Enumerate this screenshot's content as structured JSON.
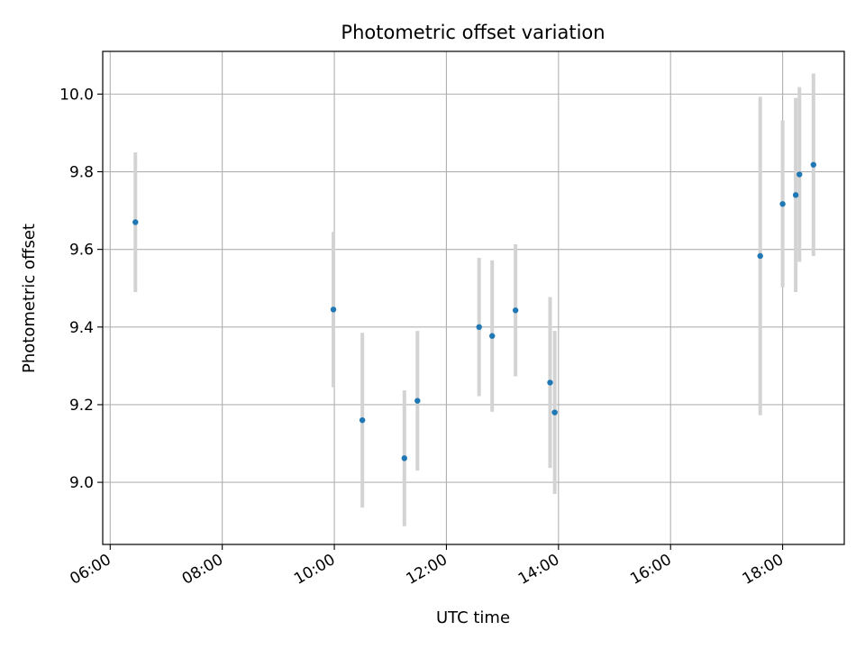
{
  "chart_data": {
    "type": "scatter",
    "title": "Photometric offset variation",
    "xlabel": "UTC time",
    "ylabel": "Photometric offset",
    "x_ticks": [
      "06:00",
      "08:00",
      "10:00",
      "12:00",
      "14:00",
      "16:00",
      "18:00"
    ],
    "y_ticks": [
      "9.0",
      "9.2",
      "9.4",
      "9.6",
      "9.8",
      "10.0"
    ],
    "xlim": [
      "05:52",
      "19:06"
    ],
    "ylim": [
      8.84,
      10.11
    ],
    "grid": true,
    "colors": {
      "point": "#1f77b4",
      "errorbar": "#d3d3d3",
      "grid": "#b0b0b0"
    },
    "points": [
      {
        "x": "06:27",
        "y": 9.67,
        "yerr": 0.18
      },
      {
        "x": "09:59",
        "y": 9.445,
        "yerr": 0.2
      },
      {
        "x": "10:30",
        "y": 9.16,
        "yerr": 0.225
      },
      {
        "x": "11:15",
        "y": 9.062,
        "yerr": 0.175
      },
      {
        "x": "11:29",
        "y": 9.21,
        "yerr": 0.18
      },
      {
        "x": "12:35",
        "y": 9.4,
        "yerr": 0.178
      },
      {
        "x": "12:49",
        "y": 9.377,
        "yerr": 0.195
      },
      {
        "x": "13:14",
        "y": 9.443,
        "yerr": 0.17
      },
      {
        "x": "13:51",
        "y": 9.257,
        "yerr": 0.22
      },
      {
        "x": "13:56",
        "y": 9.18,
        "yerr": 0.21
      },
      {
        "x": "17:36",
        "y": 9.583,
        "yerr": 0.41
      },
      {
        "x": "18:00",
        "y": 9.717,
        "yerr": 0.215
      },
      {
        "x": "18:14",
        "y": 9.74,
        "yerr": 0.25
      },
      {
        "x": "18:18",
        "y": 9.793,
        "yerr": 0.225
      },
      {
        "x": "18:33",
        "y": 9.818,
        "yerr": 0.235
      }
    ]
  }
}
